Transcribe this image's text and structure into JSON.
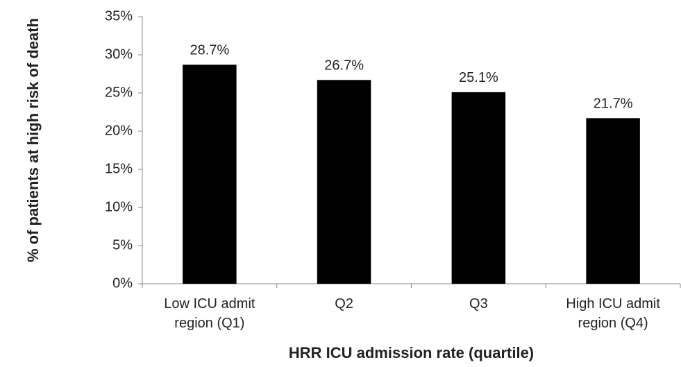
{
  "chart_data": {
    "type": "bar",
    "x_label": "HRR ICU admission rate (quartile)",
    "y_label": "% of patients at high risk of death",
    "categories": [
      "Low ICU admit region (Q1)",
      "Q2",
      "Q3",
      "High ICU admit region (Q4)"
    ],
    "values": [
      28.7,
      26.7,
      25.1,
      21.7
    ],
    "value_labels": [
      "28.7%",
      "26.7%",
      "25.1%",
      "21.7%"
    ],
    "color": "#000000",
    "ylim": [
      0,
      35
    ],
    "yticks": [
      {
        "value": 0,
        "label": "0%"
      },
      {
        "value": 5,
        "label": "5%"
      },
      {
        "value": 10,
        "label": "10%"
      },
      {
        "value": 15,
        "label": "15%"
      },
      {
        "value": 20,
        "label": "20%"
      },
      {
        "value": 25,
        "label": "25%"
      },
      {
        "value": 30,
        "label": "30%"
      },
      {
        "value": 35,
        "label": "35%"
      }
    ],
    "grid": false
  }
}
